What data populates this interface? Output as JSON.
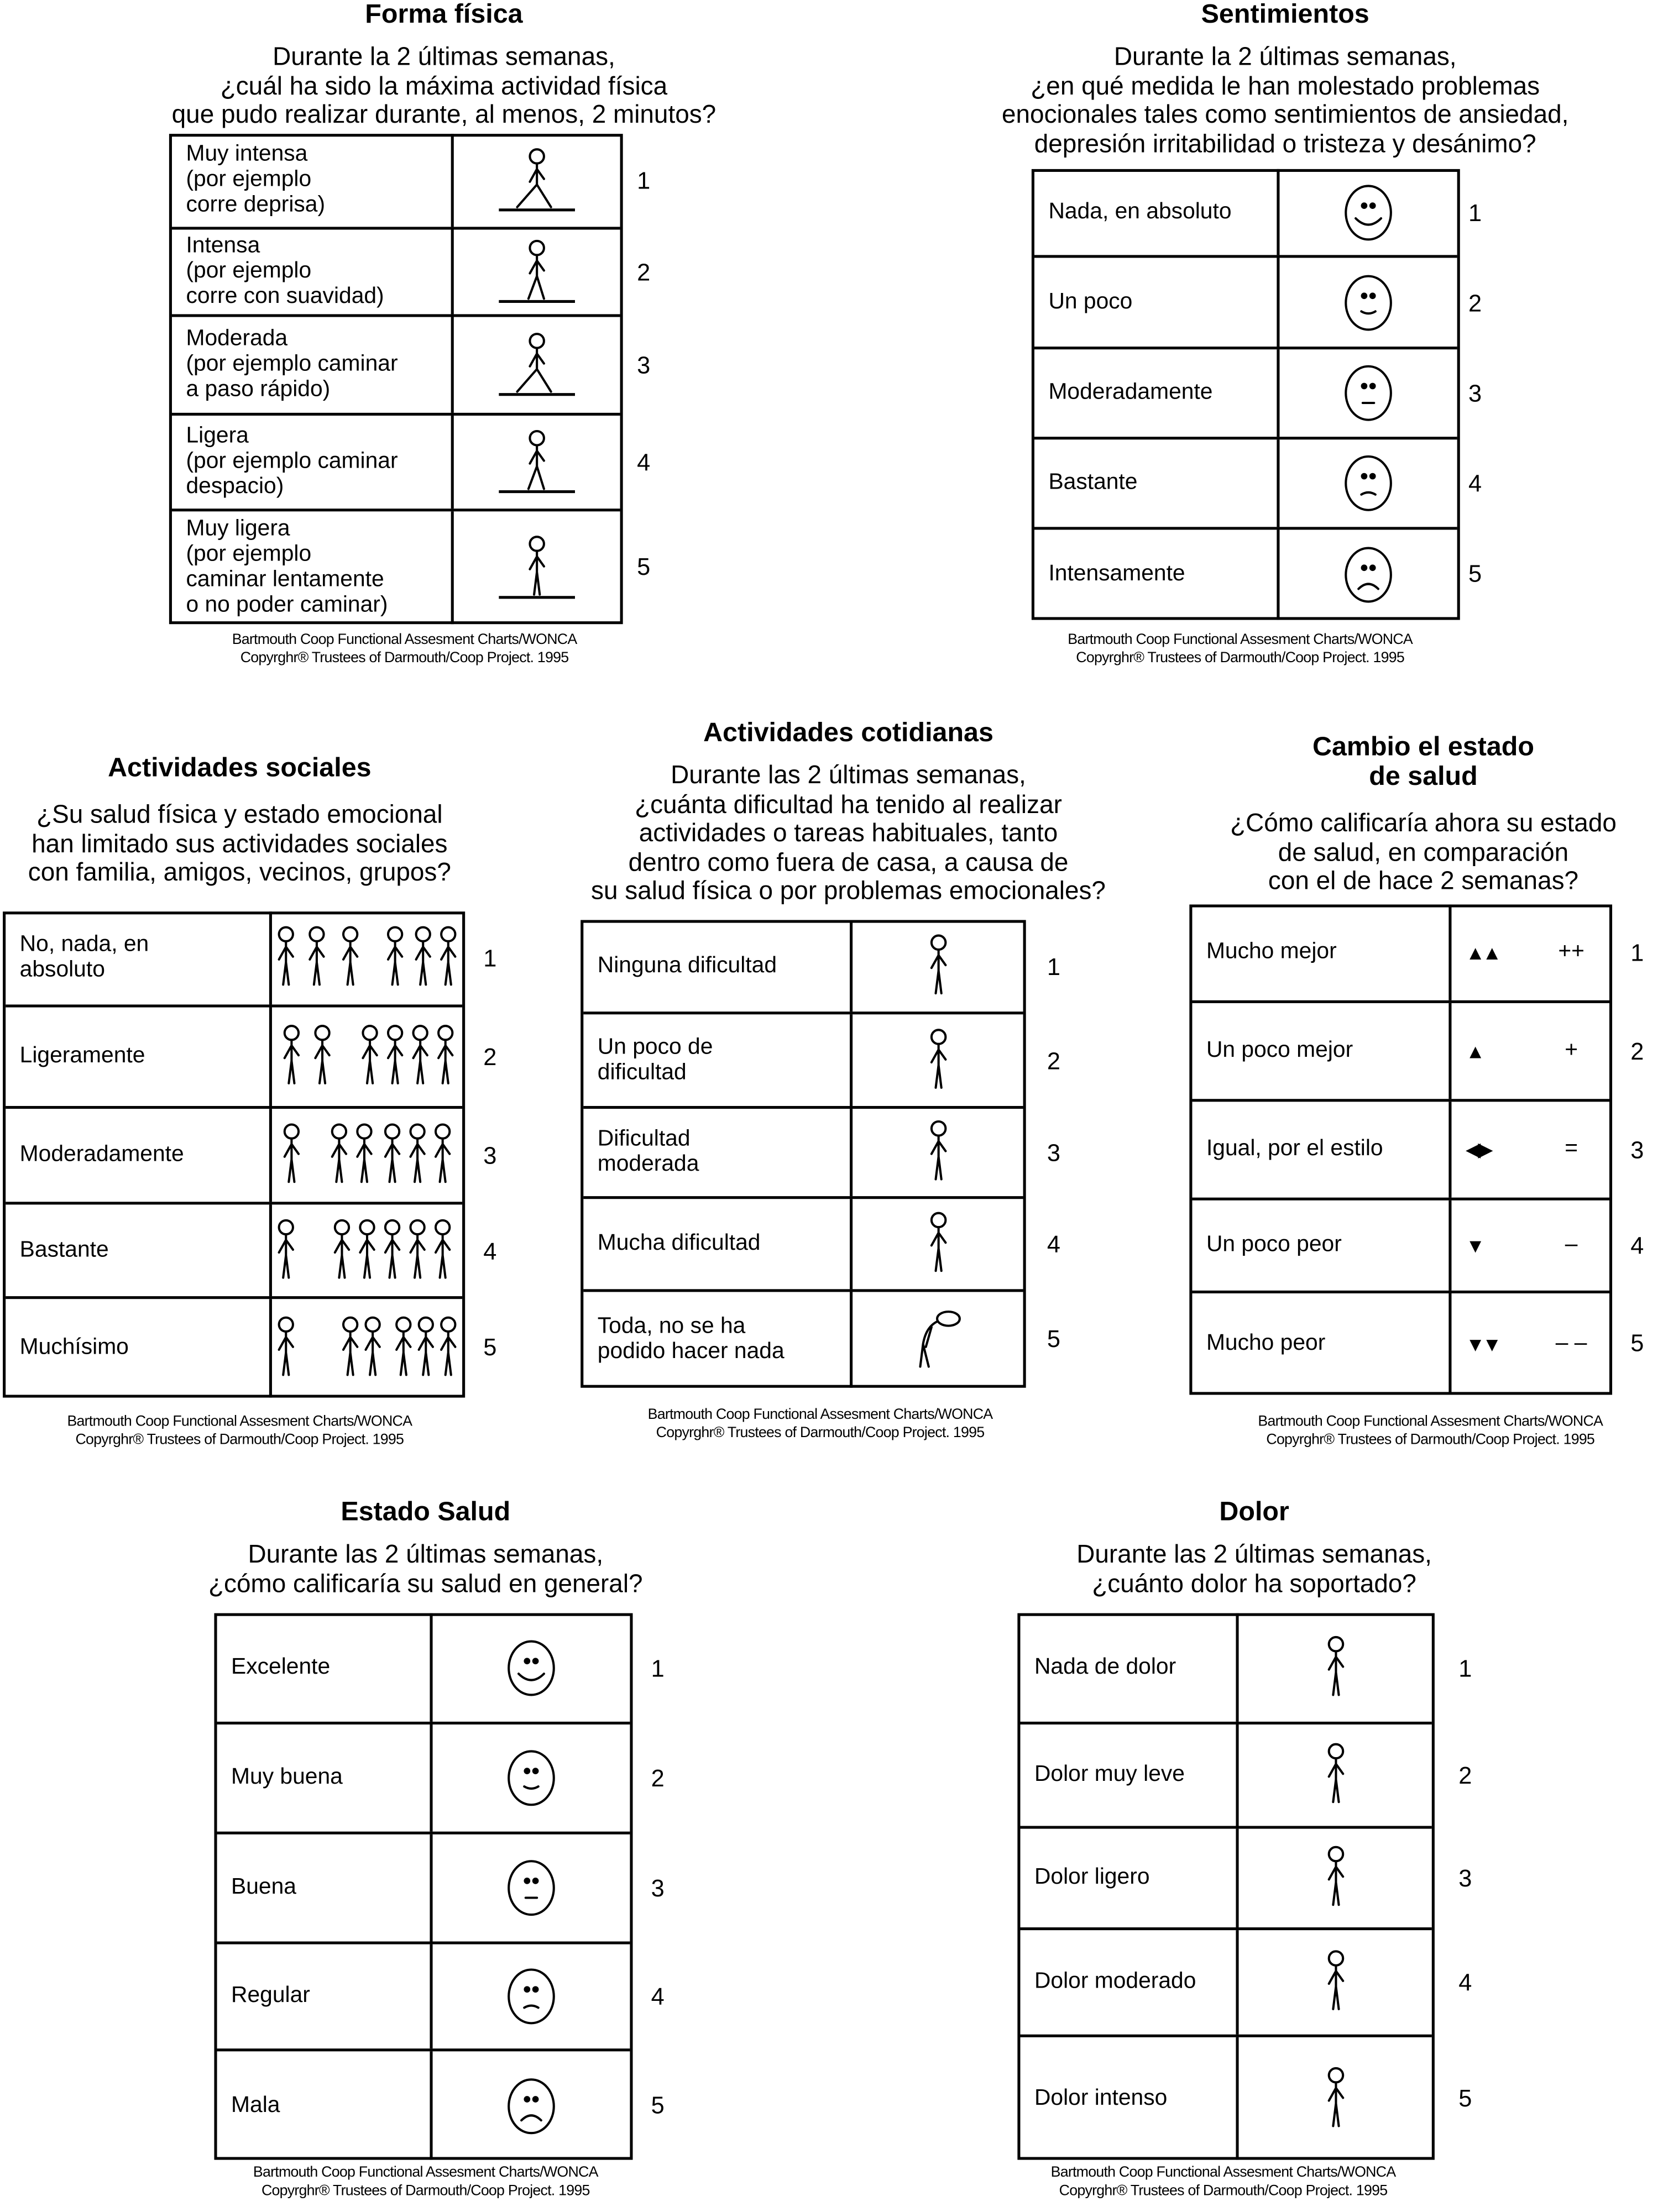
{
  "footer": {
    "line1": "Bartmouth Coop Functional Assesment Charts/WONCA",
    "line2": "Copyrghr® Trustees of Darmouth/Coop Project. 1995"
  },
  "panels": [
    {
      "id": "forma-fisica",
      "title": [
        "Forma física"
      ],
      "question": [
        "Durante la 2 últimas semanas,",
        "¿cuál ha sido la máxima actividad física",
        "que pudo realizar durante, al menos, 2 minutos?"
      ],
      "rows": [
        {
          "label": [
            "Muy intensa",
            "(por ejemplo",
            "corre deprisa)"
          ],
          "icon": "runner-fast",
          "score": "1"
        },
        {
          "label": [
            "Intensa",
            "(por ejemplo",
            "corre con suavidad)"
          ],
          "icon": "runner-slow",
          "score": "2"
        },
        {
          "label": [
            "Moderada",
            "(por ejemplo caminar",
            "a paso rápido)"
          ],
          "icon": "walker-fast",
          "score": "3"
        },
        {
          "label": [
            "Ligera",
            "(por ejemplo caminar",
            "despacio)"
          ],
          "icon": "walker-slow",
          "score": "4"
        },
        {
          "label": [
            "Muy ligera",
            "(por ejemplo",
            "caminar lentamente",
            "o no poder caminar)"
          ],
          "icon": "standing",
          "score": "5"
        }
      ]
    },
    {
      "id": "sentimientos",
      "title": [
        "Sentimientos"
      ],
      "question": [
        "Durante la 2 últimas semanas,",
        "¿en qué medida le han molestado problemas",
        "enocionales tales como sentimientos de ansiedad,",
        "depresión irritabilidad o tristeza y desánimo?"
      ],
      "rows": [
        {
          "label": [
            "Nada, en absoluto"
          ],
          "icon": "face-1",
          "score": "1"
        },
        {
          "label": [
            "Un poco"
          ],
          "icon": "face-2",
          "score": "2"
        },
        {
          "label": [
            "Moderadamente"
          ],
          "icon": "face-3",
          "score": "3"
        },
        {
          "label": [
            "Bastante"
          ],
          "icon": "face-4",
          "score": "4"
        },
        {
          "label": [
            "Intensamente"
          ],
          "icon": "face-5",
          "score": "5"
        }
      ]
    },
    {
      "id": "actividades-sociales",
      "title": [
        "Actividades sociales"
      ],
      "question": [
        "¿Su salud física y estado emocional",
        "han limitado sus actividades sociales",
        "con familia, amigos, vecinos, grupos?"
      ],
      "rows": [
        {
          "label": [
            "No, nada, en",
            "absoluto"
          ],
          "icon": "group-1",
          "score": "1"
        },
        {
          "label": [
            "Ligeramente"
          ],
          "icon": "group-2",
          "score": "2"
        },
        {
          "label": [
            "Moderadamente"
          ],
          "icon": "group-3",
          "score": "3"
        },
        {
          "label": [
            "Bastante"
          ],
          "icon": "group-4",
          "score": "4"
        },
        {
          "label": [
            "Muchísimo"
          ],
          "icon": "group-5",
          "score": "5"
        }
      ]
    },
    {
      "id": "actividades-cotidianas",
      "title": [
        "Actividades cotidianas"
      ],
      "question": [
        "Durante las 2 últimas semanas,",
        "¿cuánta dificultad ha tenido al realizar",
        "actividades o tareas habituales, tanto",
        "dentro como fuera de casa, a causa de",
        "su salud física o por problemas emocionales?"
      ],
      "rows": [
        {
          "label": [
            "Ninguna dificultad"
          ],
          "icon": "person-happy",
          "score": "1"
        },
        {
          "label": [
            "Un poco de",
            "dificultad"
          ],
          "icon": "person-ok",
          "score": "2"
        },
        {
          "label": [
            "Dificultad",
            "moderada"
          ],
          "icon": "person-neutral",
          "score": "3"
        },
        {
          "label": [
            "Mucha dificultad"
          ],
          "icon": "person-sad",
          "score": "4"
        },
        {
          "label": [
            "Toda, no se ha",
            "podido hacer nada"
          ],
          "icon": "person-slumped",
          "score": "5"
        }
      ]
    },
    {
      "id": "cambio-estado-salud",
      "title": [
        "Cambio el estado",
        "de salud"
      ],
      "question": [
        "¿Cómo calificaría ahora su estado",
        "de salud, en comparación",
        "con el de hace 2 semanas?"
      ],
      "rows": [
        {
          "label": [
            "Mucho mejor"
          ],
          "icon": "arrows-up-2",
          "symbol": "++",
          "score": "1"
        },
        {
          "label": [
            "Un poco mejor"
          ],
          "icon": "arrow-up-1",
          "symbol": "+",
          "score": "2"
        },
        {
          "label": [
            "Igual, por el estilo"
          ],
          "icon": "arrows-left-right",
          "symbol": "=",
          "score": "3"
        },
        {
          "label": [
            "Un poco peor"
          ],
          "icon": "arrow-down-1",
          "symbol": "–",
          "score": "4"
        },
        {
          "label": [
            "Mucho peor"
          ],
          "icon": "arrows-down-2",
          "symbol": "– –",
          "score": "5"
        }
      ]
    },
    {
      "id": "estado-salud",
      "title": [
        "Estado Salud"
      ],
      "question": [
        "Durante las 2 últimas semanas,",
        "¿cómo calificaría su salud en general?"
      ],
      "rows": [
        {
          "label": [
            "Excelente"
          ],
          "icon": "face-1",
          "score": "1"
        },
        {
          "label": [
            "Muy buena"
          ],
          "icon": "face-2",
          "score": "2"
        },
        {
          "label": [
            "Buena"
          ],
          "icon": "face-3",
          "score": "3"
        },
        {
          "label": [
            "Regular"
          ],
          "icon": "face-4",
          "score": "4"
        },
        {
          "label": [
            "Mala"
          ],
          "icon": "face-5",
          "score": "5"
        }
      ]
    },
    {
      "id": "dolor",
      "title": [
        "Dolor"
      ],
      "question": [
        "Durante las 2 últimas semanas,",
        "¿cuánto dolor ha soportado?"
      ],
      "rows": [
        {
          "label": [
            "Nada de dolor"
          ],
          "icon": "pain-none",
          "score": "1"
        },
        {
          "label": [
            "Dolor muy leve"
          ],
          "icon": "pain-very-mild",
          "score": "2"
        },
        {
          "label": [
            "Dolor ligero"
          ],
          "icon": "pain-mild",
          "score": "3"
        },
        {
          "label": [
            "Dolor moderado"
          ],
          "icon": "pain-moderate",
          "score": "4"
        },
        {
          "label": [
            "Dolor intenso"
          ],
          "icon": "pain-intense",
          "score": "5"
        }
      ]
    }
  ]
}
